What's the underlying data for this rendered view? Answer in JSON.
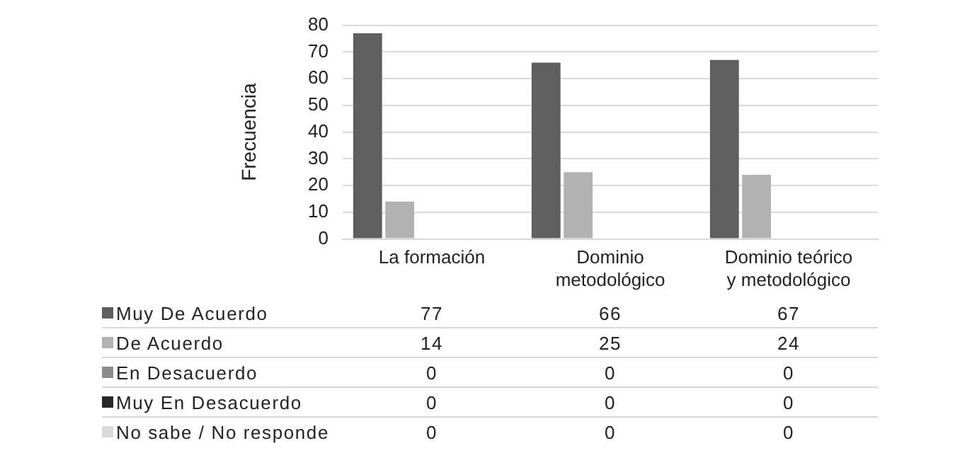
{
  "chart_data": {
    "type": "bar",
    "ylabel": "Frecuencia",
    "categories": [
      "La formación",
      "Dominio metodológico",
      "Dominio teórico y metodológico"
    ],
    "series": [
      {
        "name": "Muy De Acuerdo",
        "color": "#5f5f5f",
        "values": [
          77,
          66,
          67
        ]
      },
      {
        "name": "De Acuerdo",
        "color": "#b2b2b2",
        "values": [
          14,
          25,
          24
        ]
      },
      {
        "name": "En Desacuerdo",
        "color": "#8c8c8c",
        "values": [
          0,
          0,
          0
        ]
      },
      {
        "name": "Muy En Desacuerdo",
        "color": "#262626",
        "values": [
          0,
          0,
          0
        ]
      },
      {
        "name": "No sabe / No responde",
        "color": "#d9d9d9",
        "values": [
          0,
          0,
          0
        ]
      }
    ],
    "ylim": [
      0,
      80
    ],
    "yticks": [
      0,
      10,
      20,
      30,
      40,
      50,
      60,
      70,
      80
    ],
    "grid": "y",
    "legend": "bottom",
    "data_labels": true
  }
}
